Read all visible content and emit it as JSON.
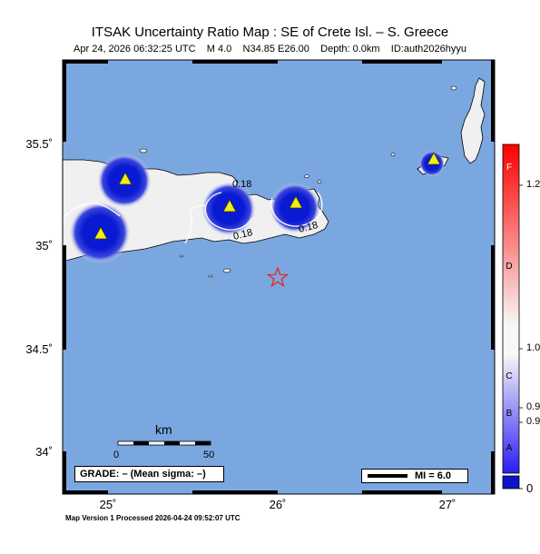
{
  "header": {
    "title": "ITSAK Uncertainty Ratio Map : SE of Crete Isl. – S. Greece",
    "subtitle": "Apr 24, 2026 06:32:25 UTC    M 4.0    N34.85 E26.00    Depth: 0.0km    ID:auth2026hyyu"
  },
  "map": {
    "sea_color": "#7ba7e0",
    "land_color": "#f0f0f0",
    "uncertainty_color": "#0a1ad2",
    "lat_ticks": [
      "35.5˚",
      "35˚",
      "34.5˚",
      "34˚"
    ],
    "lon_ticks": [
      "25˚",
      "26˚",
      "27˚"
    ],
    "contour_labels": [
      "0.18",
      "0.18",
      "0.18"
    ],
    "epicenter": {
      "lat": 34.85,
      "lon": 26.0,
      "color": "#e8252a"
    },
    "stations": [
      {
        "lat": 35.32,
        "lon": 25.1
      },
      {
        "lat": 35.06,
        "lon": 24.96
      },
      {
        "lat": 35.19,
        "lon": 25.72
      },
      {
        "lat": 35.2,
        "lon": 26.11
      },
      {
        "lat": 35.42,
        "lon": 26.92
      }
    ]
  },
  "scale_bar": {
    "title": "km",
    "start": "0",
    "end": "50"
  },
  "grade_box": {
    "text": "GRADE: – (Mean sigma: –)"
  },
  "mi_legend": {
    "text": "MI = 6.0"
  },
  "colorbar": {
    "letters": [
      "F",
      "D",
      "C",
      "B",
      "A"
    ],
    "values": [
      "1.2",
      "1.0",
      "0.9",
      "0.9",
      "0"
    ],
    "colors": {
      "top": "#ff0000",
      "mid": "#f7f7f7",
      "bottom": "#2b1cf2",
      "base": "#0a14c8"
    }
  },
  "footer": {
    "text": "Map Version 1 Processed 2026-04-24 09:52:07 UTC"
  }
}
